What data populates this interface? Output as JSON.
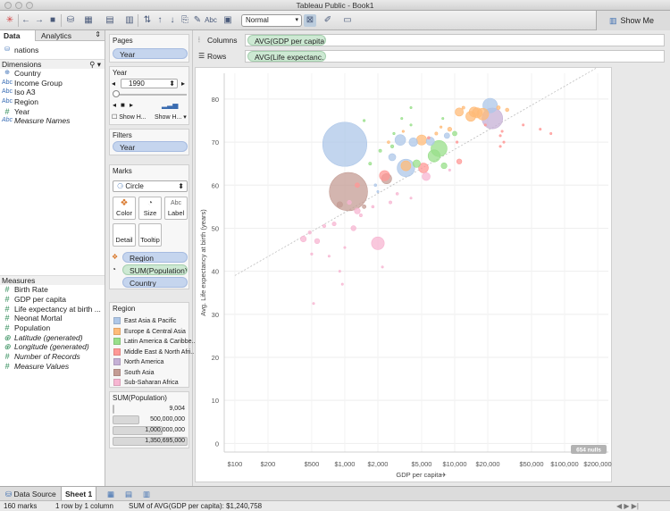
{
  "window": {
    "title": "Tableau Public - Book1"
  },
  "toolbar": {
    "zoom": "Normal",
    "abc": "Abc",
    "show_me": "Show Me"
  },
  "data_pane": {
    "tabs": [
      "Data",
      "Analytics"
    ],
    "source": "nations",
    "dimensions_header": "Dimensions",
    "dimensions": [
      {
        "icon": "globe",
        "label": "Country"
      },
      {
        "icon": "Abc",
        "label": "Income Group"
      },
      {
        "icon": "Abc",
        "label": "Iso A3"
      },
      {
        "icon": "Abc",
        "label": "Region"
      },
      {
        "icon": "#",
        "label": "Year"
      },
      {
        "icon": "Abc",
        "label": "Measure Names"
      }
    ],
    "measures_header": "Measures",
    "measures": [
      {
        "icon": "#",
        "label": "Birth Rate"
      },
      {
        "icon": "#",
        "label": "GDP per capita"
      },
      {
        "icon": "#",
        "label": "Life expectancy at birth ..."
      },
      {
        "icon": "#",
        "label": "Neonat Mortal"
      },
      {
        "icon": "#",
        "label": "Population"
      },
      {
        "icon": "globe",
        "label": "Latitude (generated)"
      },
      {
        "icon": "globe",
        "label": "Longitude (generated)"
      },
      {
        "icon": "#",
        "label": "Number of Records"
      },
      {
        "icon": "#",
        "label": "Measure Values"
      }
    ]
  },
  "pages": {
    "title": "Pages",
    "pill": "Year"
  },
  "year_control": {
    "title": "Year",
    "value": "1990",
    "show_history": "Show H...",
    "show_history2": "Show H..."
  },
  "filters": {
    "title": "Filters",
    "pill": "Year"
  },
  "marks": {
    "title": "Marks",
    "type": "Circle",
    "buttons": {
      "color": "Color",
      "size": "Size",
      "label": "Label",
      "detail": "Detail",
      "tooltip": "Tooltip"
    },
    "pills": [
      "Region",
      "SUM(Population)",
      "Country"
    ]
  },
  "region_legend": {
    "title": "Region",
    "items": [
      {
        "label": "East Asia & Pacific",
        "color": "#aec7e8"
      },
      {
        "label": "Europe & Central Asia",
        "color": "#ffbb78"
      },
      {
        "label": "Latin America & Caribbe..",
        "color": "#98df8a"
      },
      {
        "label": "Middle East & North Afri..",
        "color": "#ff9896"
      },
      {
        "label": "North America",
        "color": "#c5b0d5"
      },
      {
        "label": "South Asia",
        "color": "#c49c94"
      },
      {
        "label": "Sub-Saharan Africa",
        "color": "#f7b6d2"
      }
    ]
  },
  "size_legend": {
    "title": "SUM(Population)",
    "items": [
      "9,004",
      "500,000,000",
      "1,000,000,000",
      "1,350,695,000"
    ]
  },
  "shelves": {
    "columns_label": "Columns",
    "columns_pill": "AVG(GDP per capita)",
    "rows_label": "Rows",
    "rows_pill": "AVG(Life expectanc.."
  },
  "chart_data": {
    "type": "scatter",
    "xlabel": "GDP per capita",
    "ylabel": "Avg. Life expectancy at birth (years)",
    "x_scale": "log",
    "x_ticks": [
      "$100",
      "$200",
      "$500",
      "$1,000",
      "$2,000",
      "$5,000",
      "$10,000",
      "$20,000",
      "$50,000",
      "$100,000",
      "$200,000"
    ],
    "x_tick_values": [
      100,
      200,
      500,
      1000,
      2000,
      5000,
      10000,
      20000,
      50000,
      100000,
      200000
    ],
    "y_ticks": [
      0,
      10,
      20,
      30,
      40,
      50,
      60,
      70,
      80
    ],
    "xlim": [
      80,
      250000
    ],
    "ylim": [
      -2,
      86
    ],
    "trend_line": true,
    "nulls_badge": "654 nulls",
    "points": [
      {
        "x": 1000,
        "y": 69.5,
        "region": "East Asia & Pacific",
        "pop": 1135000000
      },
      {
        "x": 1080,
        "y": 58.5,
        "region": "South Asia",
        "pop": 850000000
      },
      {
        "x": 2400,
        "y": 61.5,
        "region": "South Asia",
        "pop": 60000000
      },
      {
        "x": 2700,
        "y": 66.5,
        "region": "East Asia & Pacific",
        "pop": 30000000
      },
      {
        "x": 3600,
        "y": 64.0,
        "region": "East Asia & Pacific",
        "pop": 180000000
      },
      {
        "x": 7200,
        "y": 68.5,
        "region": "Latin America & Caribbean",
        "pop": 150000000
      },
      {
        "x": 6500,
        "y": 66.8,
        "region": "Latin America & Caribbean",
        "pop": 85000000
      },
      {
        "x": 5000,
        "y": 70.5,
        "region": "Europe & Central Asia",
        "pop": 60000000
      },
      {
        "x": 6000,
        "y": 70.2,
        "region": "East Asia & Pacific",
        "pop": 40000000
      },
      {
        "x": 2000,
        "y": 46.5,
        "region": "Sub-Saharan Africa",
        "pop": 95000000
      },
      {
        "x": 22000,
        "y": 75.5,
        "region": "North America",
        "pop": 250000000
      },
      {
        "x": 21000,
        "y": 78.5,
        "region": "East Asia & Pacific",
        "pop": 123000000
      },
      {
        "x": 18000,
        "y": 76.5,
        "region": "Europe & Central Asia",
        "pop": 80000000
      },
      {
        "x": 15000,
        "y": 77.0,
        "region": "Europe & Central Asia",
        "pop": 57000000
      },
      {
        "x": 16000,
        "y": 76.8,
        "region": "Europe & Central Asia",
        "pop": 58000000
      },
      {
        "x": 14000,
        "y": 76.0,
        "region": "Europe & Central Asia",
        "pop": 57000000
      },
      {
        "x": 11000,
        "y": 77.0,
        "region": "Europe & Central Asia",
        "pop": 39000000
      },
      {
        "x": 4200,
        "y": 70.0,
        "region": "East Asia & Pacific",
        "pop": 43000000
      },
      {
        "x": 3600,
        "y": 64.5,
        "region": "Europe & Central Asia",
        "pop": 56000000
      },
      {
        "x": 5200,
        "y": 64.0,
        "region": "Middle East & North Africa",
        "pop": 55000000
      },
      {
        "x": 3200,
        "y": 70.5,
        "region": "East Asia & Pacific",
        "pop": 66000000
      },
      {
        "x": 4500,
        "y": 65.0,
        "region": "Latin America & Caribbean",
        "pop": 33000000
      },
      {
        "x": 2300,
        "y": 62.2,
        "region": "Middle East & North Africa",
        "pop": 60000000
      },
      {
        "x": 5500,
        "y": 62.0,
        "region": "Sub-Saharan Africa",
        "pop": 37000000
      },
      {
        "x": 8000,
        "y": 64.5,
        "region": "Latin America & Caribbean",
        "pop": 20000000
      },
      {
        "x": 8500,
        "y": 71.5,
        "region": "East Asia & Pacific",
        "pop": 18000000
      },
      {
        "x": 10000,
        "y": 72.0,
        "region": "Latin America & Caribbean",
        "pop": 12000000
      },
      {
        "x": 9000,
        "y": 73.0,
        "region": "Europe & Central Asia",
        "pop": 10000000
      },
      {
        "x": 25000,
        "y": 78.0,
        "region": "Europe & Central Asia",
        "pop": 8000000
      },
      {
        "x": 30000,
        "y": 77.5,
        "region": "Europe & Central Asia",
        "pop": 7000000
      },
      {
        "x": 12000,
        "y": 78.0,
        "region": "Europe & Central Asia",
        "pop": 5000000
      },
      {
        "x": 1300,
        "y": 54.0,
        "region": "Sub-Saharan Africa",
        "pop": 20000000
      },
      {
        "x": 1200,
        "y": 50.0,
        "region": "Sub-Saharan Africa",
        "pop": 15000000
      },
      {
        "x": 800,
        "y": 51.0,
        "region": "Sub-Saharan Africa",
        "pop": 9000000
      },
      {
        "x": 560,
        "y": 47.0,
        "region": "Sub-Saharan Africa",
        "pop": 15000000
      },
      {
        "x": 420,
        "y": 47.5,
        "region": "Sub-Saharan Africa",
        "pop": 20000000
      },
      {
        "x": 480,
        "y": 49.0,
        "region": "Sub-Saharan Africa",
        "pop": 6000000
      },
      {
        "x": 650,
        "y": 50.5,
        "region": "Sub-Saharan Africa",
        "pop": 6000000
      },
      {
        "x": 1400,
        "y": 53.0,
        "region": "Sub-Saharan Africa",
        "pop": 5000000
      },
      {
        "x": 500,
        "y": 44.0,
        "region": "Sub-Saharan Africa",
        "pop": 3000000
      },
      {
        "x": 1800,
        "y": 55.0,
        "region": "Sub-Saharan Africa",
        "pop": 4000000
      },
      {
        "x": 2600,
        "y": 56.0,
        "region": "Sub-Saharan Africa",
        "pop": 5000000
      },
      {
        "x": 3000,
        "y": 58.0,
        "region": "Sub-Saharan Africa",
        "pop": 4000000
      },
      {
        "x": 1100,
        "y": 56.0,
        "region": "Sub-Saharan Africa",
        "pop": 10000000
      },
      {
        "x": 900,
        "y": 55.5,
        "region": "South Asia",
        "pop": 19000000
      },
      {
        "x": 1500,
        "y": 55.0,
        "region": "South Asia",
        "pop": 8000000
      },
      {
        "x": 1900,
        "y": 60.0,
        "region": "East Asia & Pacific",
        "pop": 4000000
      },
      {
        "x": 2100,
        "y": 68.0,
        "region": "Latin America & Caribbean",
        "pop": 5000000
      },
      {
        "x": 2500,
        "y": 70.0,
        "region": "Europe & Central Asia",
        "pop": 4000000
      },
      {
        "x": 2800,
        "y": 72.0,
        "region": "Latin America & Caribbean",
        "pop": 3000000
      },
      {
        "x": 3400,
        "y": 72.5,
        "region": "Europe & Central Asia",
        "pop": 3000000
      },
      {
        "x": 4000,
        "y": 74.0,
        "region": "Latin America & Caribbean",
        "pop": 2000000
      },
      {
        "x": 5800,
        "y": 71.0,
        "region": "Middle East & North Africa",
        "pop": 4000000
      },
      {
        "x": 6800,
        "y": 72.0,
        "region": "Europe & Central Asia",
        "pop": 5000000
      },
      {
        "x": 7500,
        "y": 73.5,
        "region": "Europe & Central Asia",
        "pop": 3000000
      },
      {
        "x": 7800,
        "y": 75.5,
        "region": "Latin America & Caribbean",
        "pop": 2000000
      },
      {
        "x": 10500,
        "y": 70.0,
        "region": "Middle East & North Africa",
        "pop": 3000000
      },
      {
        "x": 19000,
        "y": 74.0,
        "region": "Middle East & North Africa",
        "pop": 2000000
      },
      {
        "x": 26000,
        "y": 71.5,
        "region": "Middle East & North Africa",
        "pop": 2000000
      },
      {
        "x": 26000,
        "y": 69.0,
        "region": "Middle East & North Africa",
        "pop": 1500000
      },
      {
        "x": 27000,
        "y": 72.5,
        "region": "Middle East & North Africa",
        "pop": 1000000
      },
      {
        "x": 42000,
        "y": 74.0,
        "region": "Middle East & North Africa",
        "pop": 1000000
      },
      {
        "x": 60000,
        "y": 73.0,
        "region": "Middle East & North Africa",
        "pop": 500000
      },
      {
        "x": 75000,
        "y": 72.0,
        "region": "Middle East & North Africa",
        "pop": 300000
      },
      {
        "x": 11000,
        "y": 65.5,
        "region": "Middle East & North Africa",
        "pop": 15000000
      },
      {
        "x": 9000,
        "y": 63.5,
        "region": "Sub-Saharan Africa",
        "pop": 2000000
      },
      {
        "x": 1700,
        "y": 65.0,
        "region": "Latin America & Caribbean",
        "pop": 5000000
      },
      {
        "x": 2700,
        "y": 69.0,
        "region": "Latin America & Caribbean",
        "pop": 6000000
      },
      {
        "x": 1500,
        "y": 75.0,
        "region": "Latin America & Caribbean",
        "pop": 3000000
      },
      {
        "x": 900,
        "y": 40.0,
        "region": "Sub-Saharan Africa",
        "pop": 2000000
      },
      {
        "x": 520,
        "y": 32.5,
        "region": "Sub-Saharan Africa",
        "pop": 2000000
      },
      {
        "x": 950,
        "y": 37.0,
        "region": "Sub-Saharan Africa",
        "pop": 2000000
      },
      {
        "x": 2200,
        "y": 41.0,
        "region": "Sub-Saharan Africa",
        "pop": 2000000
      },
      {
        "x": 720,
        "y": 43.5,
        "region": "Sub-Saharan Africa",
        "pop": 1500000
      },
      {
        "x": 1000,
        "y": 45.5,
        "region": "Sub-Saharan Africa",
        "pop": 1000000
      },
      {
        "x": 1300,
        "y": 60.0,
        "region": "Middle East & North Africa",
        "pop": 12000000
      },
      {
        "x": 2000,
        "y": 58.5,
        "region": "East Asia & Pacific",
        "pop": 2000000
      },
      {
        "x": 4000,
        "y": 57.0,
        "region": "Sub-Saharan Africa",
        "pop": 1000000
      },
      {
        "x": 4000,
        "y": 78.0,
        "region": "Latin America & Caribbean",
        "pop": 1000000
      },
      {
        "x": 3300,
        "y": 75.5,
        "region": "Latin America & Caribbean",
        "pop": 1000000
      },
      {
        "x": 28000,
        "y": 70.0,
        "region": "Middle East & North Africa",
        "pop": 1000000
      }
    ]
  },
  "bottom_tabs": {
    "data_source": "Data Source",
    "sheet": "Sheet 1"
  },
  "status": {
    "marks": "160 marks",
    "dims": "1 row by 1 column",
    "sum": "SUM of AVG(GDP per capita): $1,240,758"
  }
}
